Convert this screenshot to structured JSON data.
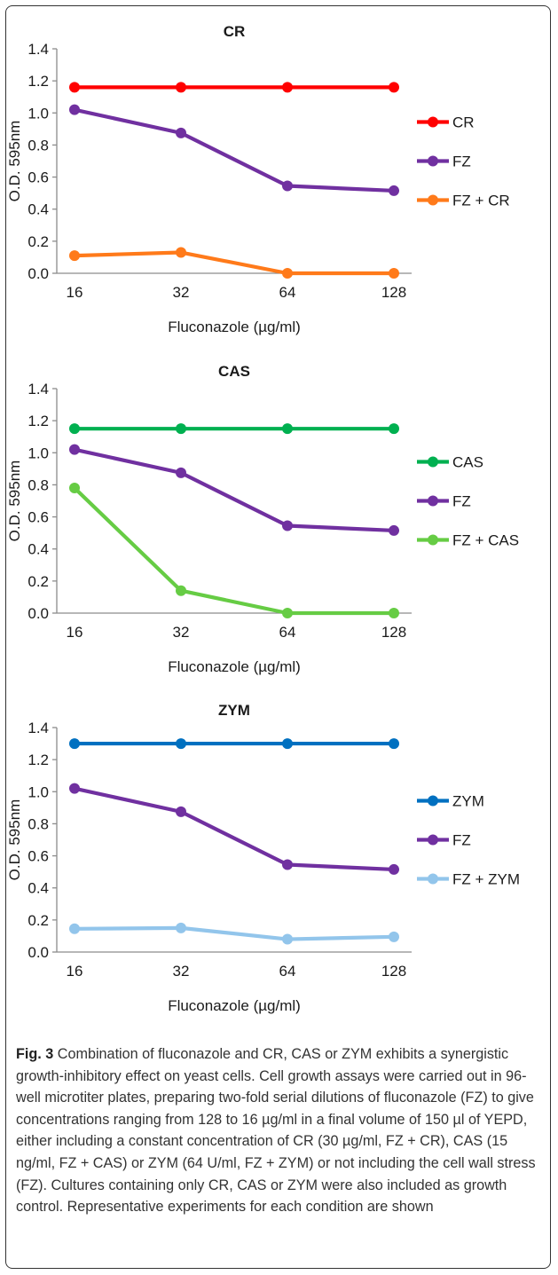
{
  "charts": [
    {
      "type": "line",
      "title": "CR",
      "xlabel": "Fluconazole (µg/ml)",
      "ylabel": "O.D. 595nm",
      "categories": [
        "16",
        "32",
        "64",
        "128"
      ],
      "ylim": [
        0,
        1.4
      ],
      "yticks": [
        "0.0",
        "0.2",
        "0.4",
        "0.6",
        "0.8",
        "1.0",
        "1.2",
        "1.4"
      ],
      "grid": false,
      "legend_position": "right",
      "series": [
        {
          "name": "CR",
          "color": "#ff0000",
          "values": [
            1.16,
            1.16,
            1.16,
            1.16
          ]
        },
        {
          "name": "FZ",
          "color": "#7030a0",
          "values": [
            1.02,
            0.875,
            0.545,
            0.515
          ]
        },
        {
          "name": "FZ + CR",
          "color": "#ff7a1a",
          "values": [
            0.11,
            0.13,
            0.0,
            0.0
          ]
        }
      ]
    },
    {
      "type": "line",
      "title": "CAS",
      "xlabel": "Fluconazole (µg/ml)",
      "ylabel": "O.D. 595nm",
      "categories": [
        "16",
        "32",
        "64",
        "128"
      ],
      "ylim": [
        0,
        1.4
      ],
      "yticks": [
        "0.0",
        "0.2",
        "0.4",
        "0.6",
        "0.8",
        "1.0",
        "1.2",
        "1.4"
      ],
      "grid": false,
      "legend_position": "right",
      "series": [
        {
          "name": "CAS",
          "color": "#00b050",
          "values": [
            1.15,
            1.15,
            1.15,
            1.15
          ]
        },
        {
          "name": "FZ",
          "color": "#7030a0",
          "values": [
            1.02,
            0.875,
            0.545,
            0.515
          ]
        },
        {
          "name": "FZ + CAS",
          "color": "#66cc44",
          "values": [
            0.78,
            0.14,
            0.0,
            0.0
          ]
        }
      ]
    },
    {
      "type": "line",
      "title": "ZYM",
      "xlabel": "Fluconazole (µg/ml)",
      "ylabel": "O.D. 595nm",
      "categories": [
        "16",
        "32",
        "64",
        "128"
      ],
      "ylim": [
        0,
        1.4
      ],
      "yticks": [
        "0.0",
        "0.2",
        "0.4",
        "0.6",
        "0.8",
        "1.0",
        "1.2",
        "1.4"
      ],
      "grid": false,
      "legend_position": "right",
      "series": [
        {
          "name": "ZYM",
          "color": "#0070c0",
          "values": [
            1.3,
            1.3,
            1.3,
            1.3
          ]
        },
        {
          "name": "FZ",
          "color": "#7030a0",
          "values": [
            1.02,
            0.875,
            0.545,
            0.515
          ]
        },
        {
          "name": "FZ + ZYM",
          "color": "#92c5eb",
          "values": [
            0.145,
            0.15,
            0.08,
            0.095
          ]
        }
      ]
    }
  ],
  "chart_data": [
    {
      "type": "line",
      "title": "CR",
      "xlabel": "Fluconazole (µg/ml)",
      "ylabel": "O.D. 595nm",
      "x": [
        16,
        32,
        64,
        128
      ],
      "ylim": [
        0,
        1.4
      ],
      "series": [
        {
          "name": "CR",
          "values": [
            1.16,
            1.16,
            1.16,
            1.16
          ]
        },
        {
          "name": "FZ",
          "values": [
            1.02,
            0.875,
            0.545,
            0.515
          ]
        },
        {
          "name": "FZ + CR",
          "values": [
            0.11,
            0.13,
            0.0,
            0.0
          ]
        }
      ]
    },
    {
      "type": "line",
      "title": "CAS",
      "xlabel": "Fluconazole (µg/ml)",
      "ylabel": "O.D. 595nm",
      "x": [
        16,
        32,
        64,
        128
      ],
      "ylim": [
        0,
        1.4
      ],
      "series": [
        {
          "name": "CAS",
          "values": [
            1.15,
            1.15,
            1.15,
            1.15
          ]
        },
        {
          "name": "FZ",
          "values": [
            1.02,
            0.875,
            0.545,
            0.515
          ]
        },
        {
          "name": "FZ + CAS",
          "values": [
            0.78,
            0.14,
            0.0,
            0.0
          ]
        }
      ]
    },
    {
      "type": "line",
      "title": "ZYM",
      "xlabel": "Fluconazole (µg/ml)",
      "ylabel": "O.D. 595nm",
      "x": [
        16,
        32,
        64,
        128
      ],
      "ylim": [
        0,
        1.4
      ],
      "series": [
        {
          "name": "ZYM",
          "values": [
            1.3,
            1.3,
            1.3,
            1.3
          ]
        },
        {
          "name": "FZ",
          "values": [
            1.02,
            0.875,
            0.545,
            0.515
          ]
        },
        {
          "name": "FZ + ZYM",
          "values": [
            0.145,
            0.15,
            0.08,
            0.095
          ]
        }
      ]
    }
  ],
  "caption": {
    "label": "Fig. 3",
    "text": "Combination of fluconazole and CR, CAS or ZYM exhibits a synergistic growth-inhibitory effect on yeast cells. Cell growth assays were carried out in 96-well microtiter plates, preparing two-fold serial dilutions of fluconazole (FZ) to give concentrations ranging from 128 to 16 µg/ml in a final volume of 150 µl of YEPD, either including a constant concentration of CR (30 µg/ml, FZ + CR), CAS (15 ng/ml, FZ + CAS) or ZYM (64 U/ml, FZ + ZYM) or not including the cell wall stress (FZ). Cultures containing only CR, CAS or ZYM were also included as growth control. Representative experiments for each condition are shown"
  }
}
